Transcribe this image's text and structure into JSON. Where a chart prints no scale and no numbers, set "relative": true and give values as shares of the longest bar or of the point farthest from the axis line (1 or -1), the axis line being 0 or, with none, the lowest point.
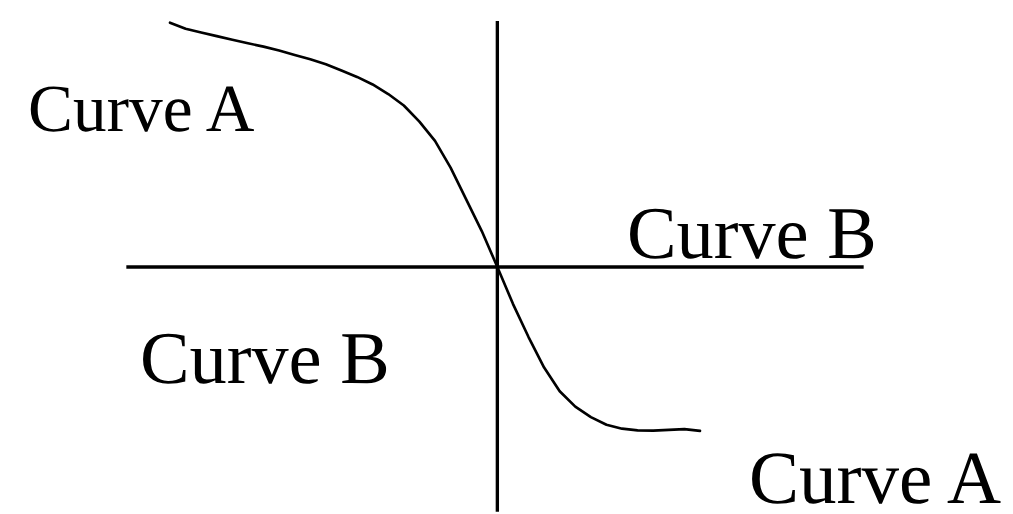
{
  "chart_data": {
    "type": "line",
    "relative": true,
    "categories": [
      null,
      null,
      null,
      null,
      null,
      null,
      null,
      null,
      null,
      null,
      null,
      null,
      null,
      null,
      null,
      null,
      null,
      null,
      null,
      null,
      null,
      null,
      null,
      null,
      null,
      null,
      null,
      null,
      null,
      null,
      null,
      null,
      null,
      null,
      null
    ],
    "series": [
      {
        "color": "#000000",
        "values": [
          1.0,
          0.975,
          0.96,
          0.945,
          0.93,
          0.916,
          0.902,
          0.886,
          0.868,
          0.85,
          0.83,
          0.804,
          0.778,
          0.747,
          0.708,
          0.661,
          0.595,
          0.516,
          0.407,
          0.277,
          0.147,
          0.0,
          -0.151,
          -0.287,
          -0.412,
          -0.509,
          -0.572,
          -0.615,
          -0.646,
          -0.662,
          -0.669,
          -0.67,
          -0.667,
          -0.664,
          -0.671
        ]
      }
    ],
    "annotations": [
      "Curve A",
      "Curve B",
      "Curve B",
      "Curve A"
    ]
  }
}
